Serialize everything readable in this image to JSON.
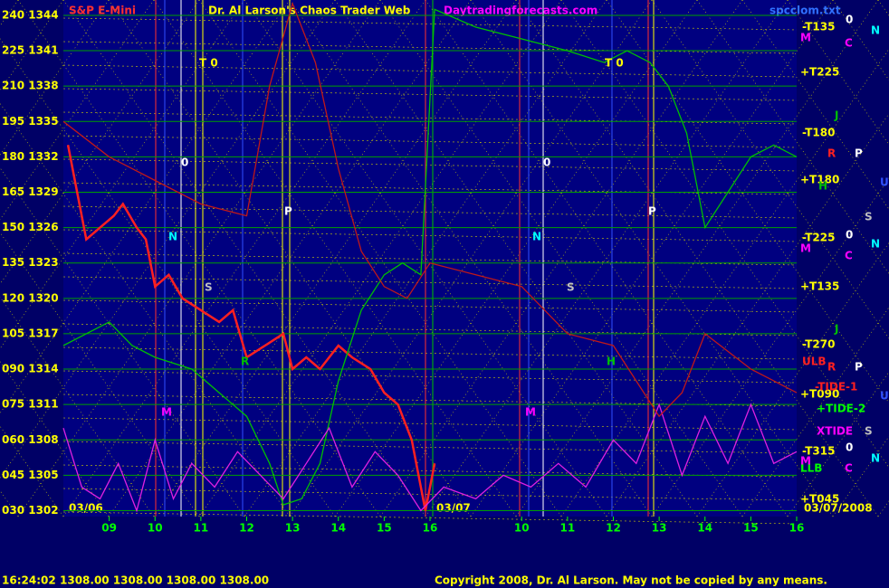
{
  "chart_data": {
    "type": "line",
    "title": "Dr. Al Larson's Chaos Trader Web",
    "instrument": "S&P E-Mini",
    "site": "Daytradingforecasts.com",
    "file": "spcclom.txt",
    "dates": [
      "03/06",
      "03/07",
      "03/07/2008"
    ],
    "status_time": "16:24:02",
    "status_prices": "1308.00 1308.00 1308.00 1308.00",
    "copyright": "Copyright 2008, Dr. Al Larson. May not be copied by any means.",
    "background": "#000066",
    "grid": true,
    "xlim": [
      8,
      24
    ],
    "ylim": [
      1301.5,
      1345.3
    ],
    "xticks": [
      {
        "value": 9,
        "label": "09"
      },
      10,
      11,
      12,
      13,
      14,
      15,
      16,
      {
        "value": 18,
        "label": "10"
      },
      {
        "value": 19,
        "label": "11"
      },
      {
        "value": 20,
        "label": "12"
      },
      {
        "value": 21,
        "label": "13"
      },
      {
        "value": 22,
        "label": "14"
      },
      {
        "value": 23,
        "label": "15"
      },
      {
        "value": 24,
        "label": "16"
      }
    ],
    "yticks": [
      {
        "value": 1302,
        "label": "030 1302"
      },
      {
        "value": 1305,
        "label": "045 1305"
      },
      {
        "value": 1308,
        "label": "060 1308"
      },
      {
        "value": 1311,
        "label": "075 1311"
      },
      {
        "value": 1314,
        "label": "090 1314"
      },
      {
        "value": 1317,
        "label": "105 1317"
      },
      {
        "value": 1320,
        "label": "120 1320"
      },
      {
        "value": 1323,
        "label": "135 1323"
      },
      {
        "value": 1326,
        "label": "150 1326"
      },
      {
        "value": 1329,
        "label": "165 1329"
      },
      {
        "value": 1332,
        "label": "180 1332"
      },
      {
        "value": 1335,
        "label": "195 1335"
      },
      {
        "value": 1338,
        "label": "210 1338"
      },
      {
        "value": 1341,
        "label": "225 1341"
      },
      {
        "value": 1344,
        "label": "240 1344"
      }
    ],
    "series": [
      {
        "color": "#ff2020",
        "x": [
          8.1,
          8.5,
          8.8,
          9.1,
          9.3,
          9.6,
          9.8,
          10,
          10.3,
          10.6,
          11,
          11.4,
          11.7,
          12,
          12.4,
          12.8,
          13,
          13.3,
          13.6,
          14,
          14.3,
          14.7,
          15,
          15.3,
          15.6,
          15.9,
          16.1
        ],
        "values": [
          1333,
          1325,
          1326,
          1327,
          1328,
          1326,
          1325,
          1321,
          1322,
          1320,
          1319,
          1318,
          1319,
          1315,
          1316,
          1317,
          1314,
          1315,
          1314,
          1316,
          1315,
          1314,
          1312,
          1311,
          1308,
          1302,
          1306
        ]
      },
      {
        "color": "#00c000",
        "x": [
          8,
          8.5,
          9,
          9.5,
          10,
          10.8,
          11.4,
          12,
          12.5,
          12.8,
          13.2,
          13.6,
          14,
          14.5,
          15,
          15.4,
          15.8,
          16.1,
          17,
          18,
          19,
          19.8,
          20.3,
          20.8,
          21.2,
          21.6,
          22,
          22.5,
          23,
          23.5,
          24
        ],
        "values": [
          1316,
          1317,
          1318,
          1316,
          1315,
          1314,
          1312,
          1310,
          1306,
          1302.5,
          1303,
          1306,
          1313,
          1319,
          1322,
          1323,
          1322,
          1344.5,
          1343,
          1342,
          1341,
          1340,
          1341,
          1340,
          1338,
          1334,
          1326,
          1329,
          1332,
          1333,
          1332
        ]
      },
      {
        "color": "#e020e0",
        "x": [
          8,
          8.4,
          8.8,
          9.2,
          9.6,
          10,
          10.4,
          10.8,
          11.3,
          11.8,
          12.3,
          12.8,
          13.3,
          13.8,
          14.3,
          14.8,
          15.3,
          15.8,
          16.3,
          17,
          17.6,
          18.2,
          18.8,
          19.4,
          20,
          20.5,
          21,
          21.5,
          22,
          22.5,
          23,
          23.5,
          24
        ],
        "values": [
          1309,
          1304,
          1303,
          1306,
          1302,
          1308,
          1303,
          1306,
          1304,
          1307,
          1305,
          1303,
          1306,
          1309,
          1304,
          1307,
          1305,
          1302,
          1304,
          1303,
          1305,
          1304,
          1306,
          1304,
          1308,
          1306,
          1311,
          1305,
          1310,
          1306,
          1311,
          1306,
          1307
        ]
      },
      {
        "color": "#c01818",
        "x": [
          8,
          9,
          10,
          11,
          12,
          12.5,
          13,
          13.5,
          14,
          14.5,
          15,
          15.5,
          16,
          17,
          18,
          19,
          20,
          21,
          21.5,
          22,
          23,
          24
        ],
        "values": [
          1335,
          1332,
          1330,
          1328,
          1327,
          1338,
          1345,
          1340,
          1331,
          1324,
          1321,
          1320,
          1323,
          1322,
          1321,
          1317,
          1316,
          1310,
          1312,
          1317,
          1314,
          1312
        ]
      }
    ],
    "annotations": [
      {
        "text": "-T135",
        "color": "#ffff00"
      },
      {
        "text": "+T225",
        "color": "#ffff00"
      },
      {
        "text": "-T180",
        "color": "#ffff00"
      },
      {
        "text": "+T180",
        "color": "#ffff00"
      },
      {
        "text": "-T225",
        "color": "#ffff00"
      },
      {
        "text": "+T135",
        "color": "#ffff00"
      },
      {
        "text": "-T270",
        "color": "#ffff00"
      },
      {
        "text": "+T090",
        "color": "#ffff00"
      },
      {
        "text": "-T315",
        "color": "#ffff00"
      },
      {
        "text": "+T045",
        "color": "#ffff00"
      },
      {
        "text": "ULB",
        "color": "#ff2020"
      },
      {
        "text": "-TIDE-1",
        "color": "#ff2020"
      },
      {
        "text": "+TIDE-2",
        "color": "#00ff00"
      },
      {
        "text": "XTIDE",
        "color": "#ff00ff"
      },
      {
        "text": "LLB",
        "color": "#00ff00"
      },
      {
        "text": "M",
        "color": "#ff00ff"
      },
      {
        "text": "0",
        "color": "#ffffff"
      },
      {
        "text": "N",
        "color": "#00ffff"
      },
      {
        "text": "C",
        "color": "#ff00ff"
      },
      {
        "text": "J",
        "color": "#00c000"
      },
      {
        "text": "R",
        "color": "#ff2020"
      },
      {
        "text": "P",
        "color": "#ffffff"
      },
      {
        "text": "H",
        "color": "#00c000"
      },
      {
        "text": "U",
        "color": "#3050ff"
      },
      {
        "text": "S",
        "color": "#c0c0c0"
      },
      {
        "text": "M",
        "color": "#ff00ff"
      },
      {
        "text": "0",
        "color": "#ffffff"
      },
      {
        "text": "N",
        "color": "#00ffff"
      },
      {
        "text": "C",
        "color": "#ff00ff"
      },
      {
        "text": "J",
        "color": "#00c000"
      },
      {
        "text": "R",
        "color": "#ff2020"
      },
      {
        "text": "P",
        "color": "#ffffff"
      },
      {
        "text": "U",
        "color": "#3050ff"
      },
      {
        "text": "S",
        "color": "#c0c0c0"
      },
      {
        "text": "0",
        "color": "#ffffff"
      },
      {
        "text": "N",
        "color": "#00ffff"
      },
      {
        "text": "M",
        "color": "#ff00ff"
      },
      {
        "text": "C",
        "color": "#ff00ff"
      },
      {
        "text": "T 0",
        "color": "#ffff00"
      },
      {
        "text": "T 0",
        "color": "#ffff00"
      },
      {
        "text": "0",
        "color": "#ffffff"
      },
      {
        "text": "0",
        "color": "#ffffff"
      },
      {
        "text": "P",
        "color": "#ffffff"
      },
      {
        "text": "P",
        "color": "#ffffff"
      },
      {
        "text": "N",
        "color": "#00ffff"
      },
      {
        "text": "N",
        "color": "#00ffff"
      },
      {
        "text": "S",
        "color": "#c0c0c0"
      },
      {
        "text": "S",
        "color": "#c0c0c0"
      },
      {
        "text": "R",
        "color": "#00c000"
      },
      {
        "text": "H",
        "color": "#00c000"
      },
      {
        "text": "M",
        "color": "#ff00ff"
      },
      {
        "text": "M",
        "color": "#ff00ff"
      }
    ]
  }
}
